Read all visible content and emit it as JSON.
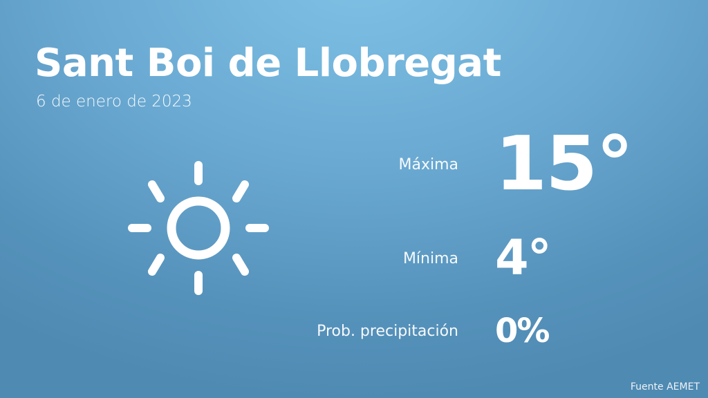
{
  "header": {
    "city": "Sant Boi de Llobregat",
    "date": "6 de enero de 2023"
  },
  "weather": {
    "icon": "sun-icon",
    "max_label": "Máxima",
    "max_value": "15°",
    "min_label": "Mínima",
    "min_value": "4°",
    "precip_label": "Prob. precipitación",
    "precip_value": "0%"
  },
  "footer": {
    "source": "Fuente AEMET"
  },
  "colors": {
    "bg_top": "#7fc2e6",
    "bg_bottom": "#4f8ab2",
    "text": "#ffffff"
  }
}
